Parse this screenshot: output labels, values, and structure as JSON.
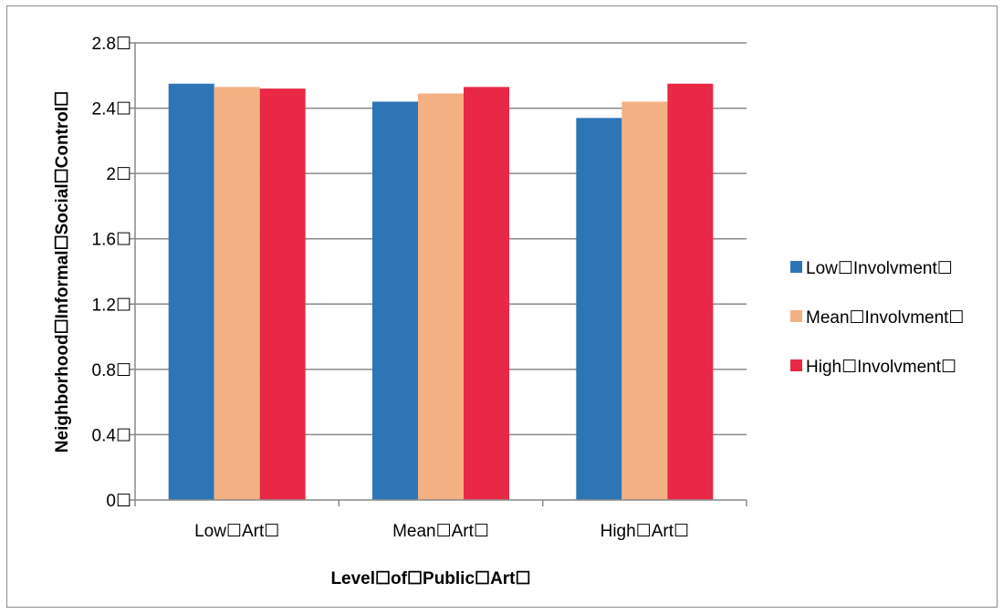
{
  "chart_data": {
    "type": "bar",
    "title": "",
    "xlabel": "Level☐of☐Public☐Art☐",
    "ylabel": "Neighborhood☐Informal☐Social☐Control☐",
    "categories": [
      "Low☐Art☐",
      "Mean☐Art☐",
      "High☐Art☐"
    ],
    "ylim": [
      0,
      2.8
    ],
    "yticks": [
      0,
      0.4,
      0.8,
      1.2,
      1.6,
      2,
      2.4,
      2.8
    ],
    "ytick_labels": [
      "0☐",
      "0.4☐",
      "0.8☐",
      "1.2☐",
      "1.6☐",
      "2☐",
      "2.4☐",
      "2.8☐"
    ],
    "grid": true,
    "legend_position": "right",
    "series": [
      {
        "name": "Low☐Involvment☐",
        "color": "#2e75b6",
        "values": [
          2.55,
          2.44,
          2.34
        ]
      },
      {
        "name": "Mean☐Involvment☐",
        "color": "#f4b183",
        "values": [
          2.53,
          2.49,
          2.44
        ]
      },
      {
        "name": "High☐Involvment☐",
        "color": "#e82844",
        "values": [
          2.52,
          2.53,
          2.55
        ]
      }
    ]
  }
}
